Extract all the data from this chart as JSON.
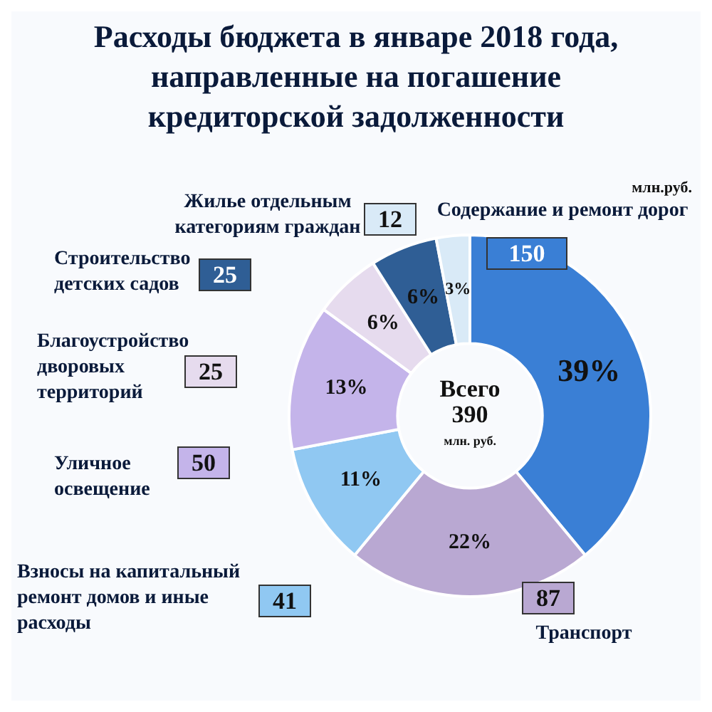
{
  "chart_data": {
    "type": "donut",
    "title": "Расходы бюджета в январе 2018 года, направленные на погашение кредиторской задолженности",
    "categories": [
      "Содержание и ремонт дорог",
      "Транспорт",
      "Взносы на капитальный ремонт домов и иные расходы",
      "Уличное освещение",
      "Благоустройство дворовых территорий",
      "Строительство детских садов",
      "Жилье отдельным категориям граждан"
    ],
    "values": [
      39,
      22,
      11,
      13,
      6,
      6,
      3
    ],
    "colors": [
      "#3a7fd5",
      "#b9a8d2",
      "#90c8f2",
      "#c4b4ea",
      "#e6dbee",
      "#2f5e95",
      "#d9eaf7"
    ],
    "value_labels": [
      "39%",
      "22%",
      "11%",
      "13%",
      "6%",
      "6%",
      "3%"
    ],
    "legend": "left",
    "annotations": [
      "млн.руб.",
      "Всего",
      "390",
      "млн. руб.",
      "150",
      "87",
      "41",
      "50",
      "25",
      "25",
      "12"
    ]
  }
}
